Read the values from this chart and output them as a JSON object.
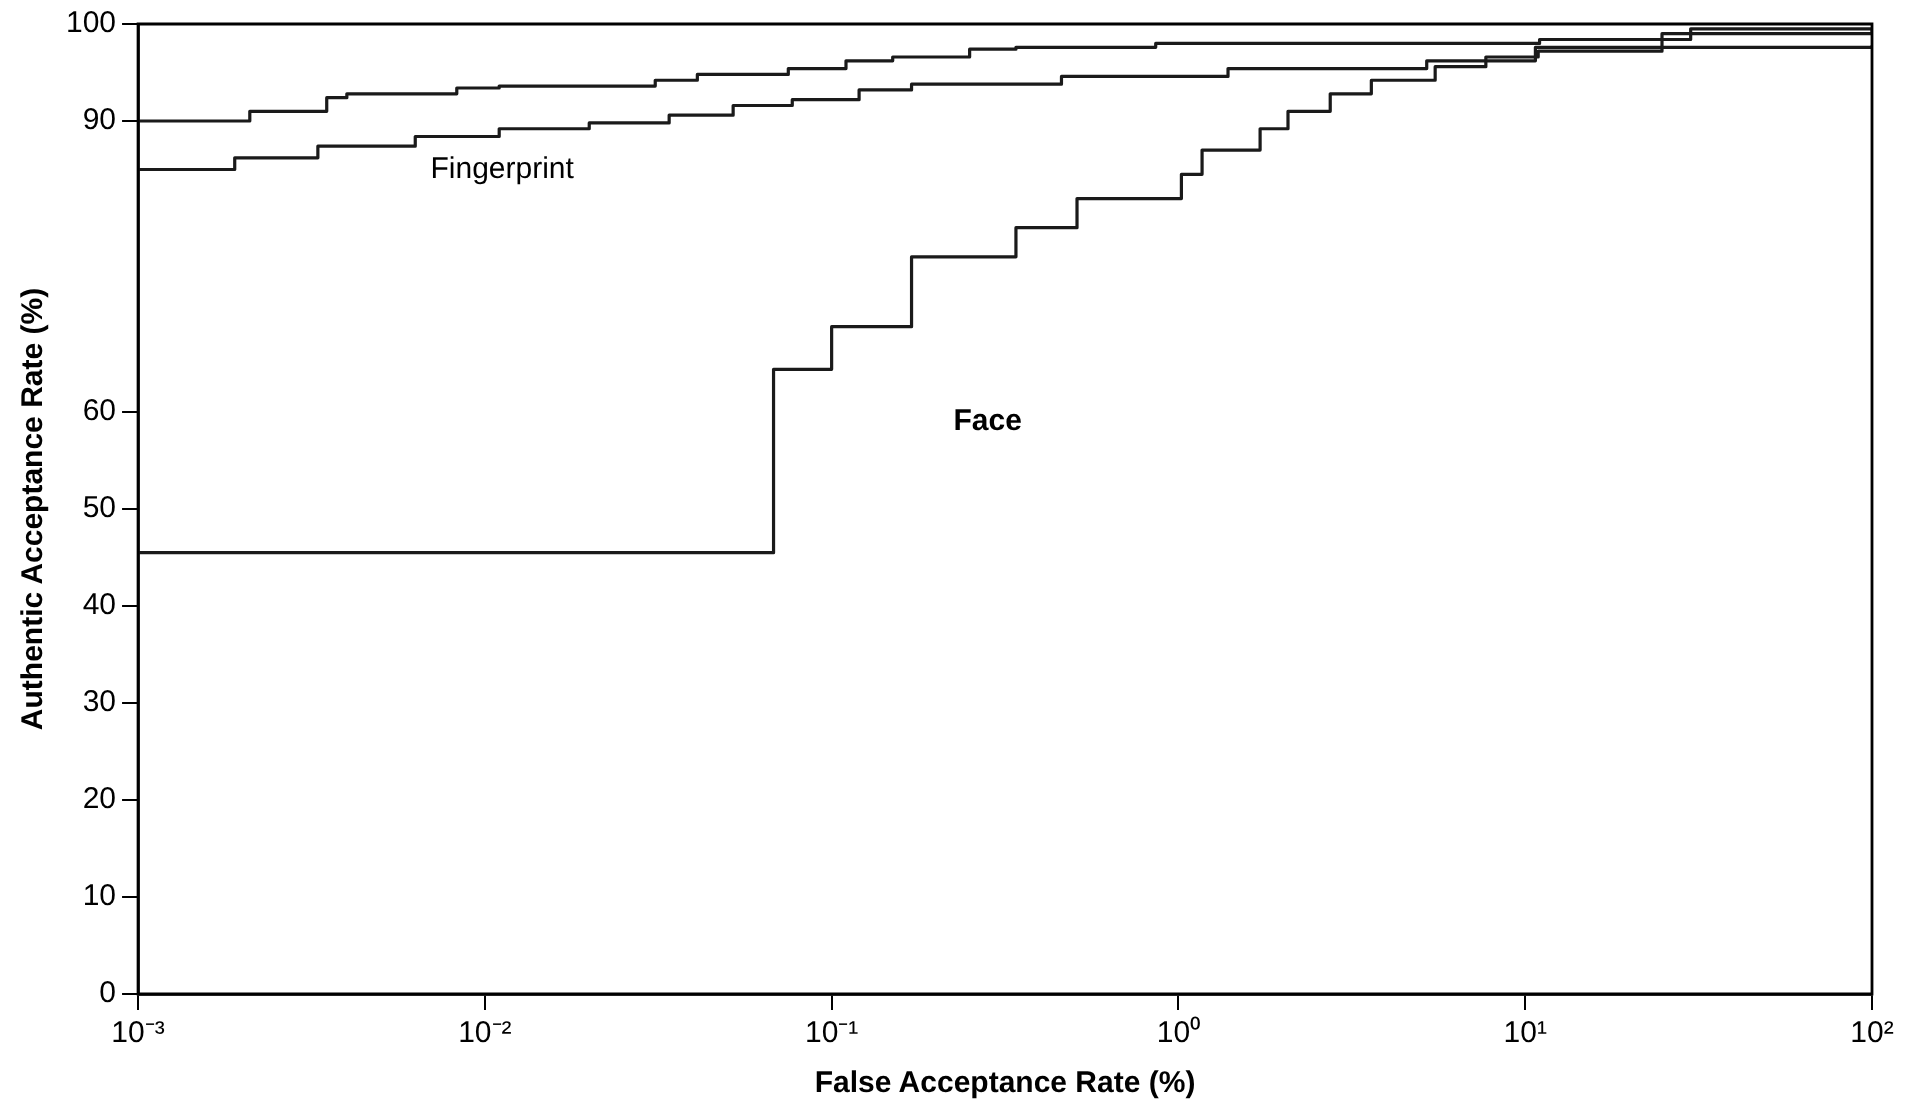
{
  "chart_data": {
    "type": "step",
    "xlabel": "False Acceptance Rate (%)",
    "ylabel": "Authentic Acceptance Rate (%)",
    "log": "x",
    "xlim": [
      0.001,
      100
    ],
    "xticks": [
      {
        "value": 0.001,
        "label": "10⁻³"
      },
      {
        "value": 0.01,
        "label": "10⁻²"
      },
      {
        "value": 0.1,
        "label": "10⁻¹"
      },
      {
        "value": 1,
        "label": "10⁰"
      },
      {
        "value": 10,
        "label": "10¹"
      },
      {
        "value": 100,
        "label": "10²"
      }
    ],
    "ylim": [
      0,
      100
    ],
    "yticks": [
      0,
      10,
      20,
      30,
      40,
      50,
      60,
      90,
      100
    ],
    "grid": false,
    "legend": false,
    "marker": "none",
    "line_style": "solid",
    "series": [
      {
        "color": "#1a1a1a",
        "x": [
          0.001,
          0.0021,
          0.0035,
          0.004,
          0.0083,
          0.011,
          0.031,
          0.041,
          0.075,
          0.11,
          0.15,
          0.25,
          0.34,
          0.86,
          11,
          30,
          100
        ],
        "values": [
          90,
          91,
          92.4,
          92.8,
          93.4,
          93.6,
          94.2,
          94.8,
          95.4,
          96.2,
          96.6,
          97.4,
          97.6,
          98,
          98.4,
          99.5,
          99.6
        ]
      },
      {
        "name": "Fingerprint",
        "color": "#1a1a1a",
        "x": [
          0.001,
          0.0019,
          0.0033,
          0.0063,
          0.011,
          0.02,
          0.034,
          0.052,
          0.077,
          0.12,
          0.17,
          0.46,
          1.39,
          5.2,
          10.7,
          100
        ],
        "values": [
          85,
          86.2,
          87.4,
          88.4,
          89.2,
          89.8,
          90.6,
          91.6,
          92.2,
          93.2,
          93.8,
          94.6,
          95.4,
          96.2,
          97.6,
          97.8
        ]
      },
      {
        "name": "Face",
        "color": "#1a1a1a",
        "x": [
          0.001,
          0.068,
          0.1,
          0.17,
          0.34,
          0.51,
          1.02,
          1.17,
          1.72,
          2.07,
          2.74,
          3.6,
          5.5,
          7.7,
          10.9,
          24.8,
          100
        ],
        "values": [
          45.5,
          64.4,
          68.8,
          76,
          79,
          82,
          84.5,
          87,
          89.2,
          91,
          92.8,
          94.2,
          95.6,
          96.6,
          97.2,
          99,
          99.5
        ]
      }
    ]
  }
}
